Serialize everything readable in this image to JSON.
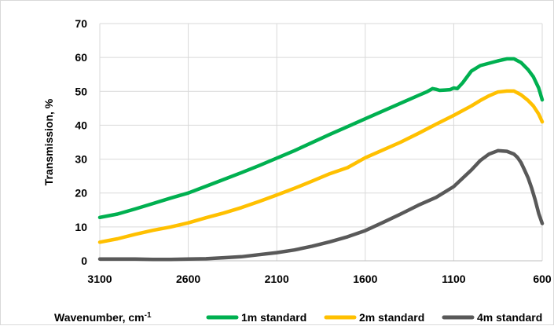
{
  "chart_data": {
    "type": "line",
    "xlabel": "Wavenumber, cm",
    "xlabel_superscript": "-1",
    "ylabel": "Transmission, %",
    "xlim": [
      3100,
      600
    ],
    "x_reversed": true,
    "ylim": [
      0,
      70
    ],
    "x_ticks": [
      "3100",
      "2600",
      "2100",
      "1600",
      "1100",
      "600"
    ],
    "y_ticks": [
      "0",
      "10",
      "20",
      "30",
      "40",
      "50",
      "60",
      "70"
    ],
    "grid": "both",
    "legend_position": "bottom",
    "series": [
      {
        "name": "1m standard",
        "color": "#00b050",
        "x": [
          3100,
          3000,
          2900,
          2800,
          2700,
          2600,
          2500,
          2400,
          2300,
          2200,
          2100,
          2000,
          1900,
          1800,
          1700,
          1600,
          1500,
          1400,
          1300,
          1250,
          1220,
          1200,
          1180,
          1150,
          1120,
          1100,
          1080,
          1050,
          1000,
          950,
          900,
          850,
          800,
          760,
          720,
          680,
          650,
          620,
          600
        ],
        "y": [
          12.8,
          13.8,
          15.3,
          16.9,
          18.5,
          20.0,
          22.0,
          24.0,
          26.0,
          28.1,
          30.3,
          32.5,
          34.9,
          37.3,
          39.6,
          41.9,
          44.2,
          46.5,
          48.8,
          49.9,
          50.8,
          50.6,
          50.3,
          50.4,
          50.5,
          51.0,
          50.8,
          52.5,
          56.0,
          57.6,
          58.3,
          59.0,
          59.6,
          59.6,
          58.5,
          56.4,
          54.3,
          51.0,
          47.5
        ]
      },
      {
        "name": "2m standard",
        "color": "#ffc000",
        "x": [
          3100,
          3000,
          2900,
          2800,
          2700,
          2600,
          2500,
          2400,
          2300,
          2200,
          2100,
          2000,
          1900,
          1800,
          1700,
          1600,
          1500,
          1400,
          1300,
          1200,
          1100,
          1000,
          950,
          900,
          850,
          800,
          760,
          720,
          680,
          650,
          620,
          600
        ],
        "y": [
          5.5,
          6.5,
          7.8,
          9.0,
          10.0,
          11.2,
          12.7,
          14.1,
          15.7,
          17.5,
          19.4,
          21.4,
          23.5,
          25.7,
          27.5,
          30.4,
          32.7,
          35.0,
          37.6,
          40.3,
          42.9,
          45.7,
          47.3,
          48.7,
          49.8,
          50.1,
          50.1,
          49.0,
          47.3,
          45.7,
          43.3,
          41.0
        ]
      },
      {
        "name": "4m standard",
        "color": "#595959",
        "x": [
          3100,
          3000,
          2900,
          2800,
          2700,
          2600,
          2500,
          2400,
          2300,
          2200,
          2100,
          2000,
          1900,
          1800,
          1700,
          1600,
          1500,
          1400,
          1300,
          1200,
          1100,
          1000,
          950,
          900,
          850,
          800,
          760,
          740,
          720,
          700,
          680,
          660,
          640,
          620,
          600
        ],
        "y": [
          0.5,
          0.5,
          0.5,
          0.4,
          0.4,
          0.5,
          0.6,
          0.9,
          1.2,
          1.8,
          2.4,
          3.2,
          4.3,
          5.6,
          7.1,
          8.9,
          11.3,
          13.8,
          16.4,
          18.7,
          21.9,
          26.8,
          29.6,
          31.5,
          32.5,
          32.3,
          31.5,
          30.5,
          29.0,
          26.8,
          24.5,
          21.5,
          18.0,
          14.0,
          11.0
        ]
      }
    ]
  }
}
